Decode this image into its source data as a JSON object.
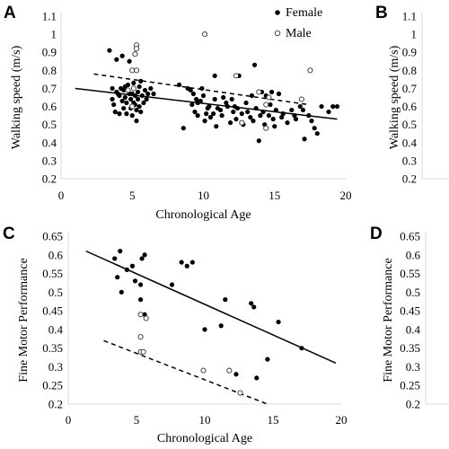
{
  "figure": {
    "panels": [
      "A",
      "B",
      "C",
      "D"
    ]
  },
  "chart_data": [
    {
      "panel": "A",
      "type": "scatter",
      "xlabel": "Chronological Age",
      "ylabel": "Walking speed (m/s)",
      "xlim": [
        0,
        20
      ],
      "ylim": [
        0.2,
        1.1
      ],
      "x_ticks": [
        "0",
        "5",
        "10",
        "15",
        "20"
      ],
      "y_ticks": [
        "0.2",
        "0.3",
        "0.4",
        "0.5",
        "0.6",
        "0.7",
        "0.8",
        "0.9",
        "1",
        "1.1"
      ],
      "legend": {
        "position": "top-right",
        "entries": [
          "Female",
          "Male"
        ]
      },
      "series": [
        {
          "name": "Female",
          "marker": "filled-circle",
          "points": [
            [
              3.4,
              0.91
            ],
            [
              3.6,
              0.7
            ],
            [
              3.6,
              0.64
            ],
            [
              3.7,
              0.61
            ],
            [
              3.8,
              0.57
            ],
            [
              3.9,
              0.86
            ],
            [
              3.9,
              0.68
            ],
            [
              4.0,
              0.67
            ],
            [
              4.1,
              0.66
            ],
            [
              4.1,
              0.56
            ],
            [
              4.2,
              0.7
            ],
            [
              4.3,
              0.88
            ],
            [
              4.3,
              0.63
            ],
            [
              4.4,
              0.69
            ],
            [
              4.4,
              0.59
            ],
            [
              4.5,
              0.71
            ],
            [
              4.5,
              0.65
            ],
            [
              4.6,
              0.62
            ],
            [
              4.6,
              0.56
            ],
            [
              4.7,
              0.72
            ],
            [
              4.8,
              0.67
            ],
            [
              4.8,
              0.85
            ],
            [
              4.9,
              0.64
            ],
            [
              4.9,
              0.59
            ],
            [
              5.0,
              0.67
            ],
            [
              5.0,
              0.55
            ],
            [
              5.1,
              0.73
            ],
            [
              5.1,
              0.62
            ],
            [
              5.2,
              0.66
            ],
            [
              5.2,
              0.61
            ],
            [
              5.3,
              0.58
            ],
            [
              5.3,
              0.52
            ],
            [
              5.4,
              0.68
            ],
            [
              5.4,
              0.64
            ],
            [
              5.5,
              0.71
            ],
            [
              5.5,
              0.6
            ],
            [
              5.6,
              0.57
            ],
            [
              5.6,
              0.74
            ],
            [
              5.7,
              0.66
            ],
            [
              5.8,
              0.62
            ],
            [
              5.9,
              0.69
            ],
            [
              6.0,
              0.64
            ],
            [
              6.1,
              0.67
            ],
            [
              6.3,
              0.7
            ],
            [
              6.5,
              0.67
            ],
            [
              8.3,
              0.72
            ],
            [
              8.6,
              0.48
            ],
            [
              8.9,
              0.7
            ],
            [
              9.1,
              0.69
            ],
            [
              9.2,
              0.61
            ],
            [
              9.3,
              0.67
            ],
            [
              9.4,
              0.57
            ],
            [
              9.5,
              0.64
            ],
            [
              9.6,
              0.55
            ],
            [
              9.6,
              0.62
            ],
            [
              9.8,
              0.63
            ],
            [
              9.9,
              0.7
            ],
            [
              10.0,
              0.66
            ],
            [
              10.1,
              0.52
            ],
            [
              10.2,
              0.56
            ],
            [
              10.3,
              0.59
            ],
            [
              10.4,
              0.6
            ],
            [
              10.5,
              0.54
            ],
            [
              10.7,
              0.56
            ],
            [
              10.8,
              0.64
            ],
            [
              10.8,
              0.77
            ],
            [
              10.9,
              0.49
            ],
            [
              11.0,
              0.59
            ],
            [
              11.2,
              0.58
            ],
            [
              11.3,
              0.55
            ],
            [
              11.4,
              0.65
            ],
            [
              11.6,
              0.62
            ],
            [
              11.7,
              0.6
            ],
            [
              11.9,
              0.51
            ],
            [
              12.0,
              0.64
            ],
            [
              12.1,
              0.57
            ],
            [
              12.2,
              0.6
            ],
            [
              12.3,
              0.53
            ],
            [
              12.4,
              0.59
            ],
            [
              12.5,
              0.77
            ],
            [
              12.7,
              0.56
            ],
            [
              12.8,
              0.5
            ],
            [
              13.0,
              0.62
            ],
            [
              13.1,
              0.57
            ],
            [
              13.3,
              0.54
            ],
            [
              13.4,
              0.66
            ],
            [
              13.5,
              0.52
            ],
            [
              13.6,
              0.83
            ],
            [
              13.7,
              0.59
            ],
            [
              13.9,
              0.41
            ],
            [
              14.0,
              0.55
            ],
            [
              14.1,
              0.68
            ],
            [
              14.2,
              0.57
            ],
            [
              14.3,
              0.5
            ],
            [
              14.4,
              0.66
            ],
            [
              14.6,
              0.55
            ],
            [
              14.7,
              0.61
            ],
            [
              14.8,
              0.68
            ],
            [
              14.9,
              0.53
            ],
            [
              15.0,
              0.49
            ],
            [
              15.1,
              0.58
            ],
            [
              15.3,
              0.67
            ],
            [
              15.5,
              0.54
            ],
            [
              15.6,
              0.56
            ],
            [
              15.9,
              0.51
            ],
            [
              16.2,
              0.58
            ],
            [
              16.4,
              0.55
            ],
            [
              16.5,
              0.53
            ],
            [
              16.8,
              0.6
            ],
            [
              17.0,
              0.58
            ],
            [
              17.1,
              0.42
            ],
            [
              17.4,
              0.55
            ],
            [
              17.6,
              0.52
            ],
            [
              17.8,
              0.48
            ],
            [
              18.0,
              0.45
            ],
            [
              18.3,
              0.6
            ],
            [
              18.8,
              0.57
            ],
            [
              19.1,
              0.6
            ],
            [
              19.4,
              0.6
            ]
          ],
          "trendline": {
            "style": "solid",
            "from": [
              1.0,
              0.7
            ],
            "to": [
              19.4,
              0.53
            ]
          }
        },
        {
          "name": "Male",
          "marker": "open-circle",
          "points": [
            [
              5.3,
              0.94
            ],
            [
              5.3,
              0.92
            ],
            [
              5.2,
              0.89
            ],
            [
              5.0,
              0.8
            ],
            [
              5.3,
              0.8
            ],
            [
              5.1,
              0.7
            ],
            [
              4.7,
              0.69
            ],
            [
              5.0,
              0.6
            ],
            [
              10.1,
              1.0
            ],
            [
              12.3,
              0.77
            ],
            [
              13.9,
              0.68
            ],
            [
              14.6,
              0.65
            ],
            [
              14.4,
              0.61
            ],
            [
              12.7,
              0.51
            ],
            [
              14.4,
              0.48
            ],
            [
              17.5,
              0.8
            ],
            [
              16.9,
              0.64
            ]
          ],
          "trendline": {
            "style": "dashed",
            "from": [
              2.3,
              0.78
            ],
            "to": [
              17.4,
              0.61
            ]
          }
        }
      ]
    },
    {
      "panel": "B",
      "type": "scatter",
      "ylabel": "Walking speed (m/s)",
      "ylim": [
        0.2,
        1.1
      ],
      "y_ticks": [
        "0.2",
        "0.3",
        "0.4",
        "0.5",
        "0.6",
        "0.7",
        "0.8",
        "0.9",
        "1",
        "1.1"
      ],
      "note": "panel cropped at right edge of image"
    },
    {
      "panel": "C",
      "type": "scatter",
      "xlabel": "Chronological Age",
      "ylabel": "Fine Motor Performance",
      "xlim": [
        0,
        20
      ],
      "ylim": [
        0.2,
        0.65
      ],
      "x_ticks": [
        "0",
        "5",
        "10",
        "15",
        "20"
      ],
      "y_ticks": [
        "0.2",
        "0.25",
        "0.3",
        "0.35",
        "0.4",
        "0.45",
        "0.5",
        "0.55",
        "0.6",
        "0.65"
      ],
      "series": [
        {
          "name": "Female",
          "marker": "filled-circle",
          "points": [
            [
              3.4,
              0.59
            ],
            [
              3.8,
              0.61
            ],
            [
              3.6,
              0.54
            ],
            [
              3.9,
              0.5
            ],
            [
              4.3,
              0.56
            ],
            [
              4.7,
              0.57
            ],
            [
              4.9,
              0.53
            ],
            [
              5.4,
              0.59
            ],
            [
              5.6,
              0.6
            ],
            [
              5.3,
              0.52
            ],
            [
              5.3,
              0.48
            ],
            [
              5.6,
              0.44
            ],
            [
              7.6,
              0.52
            ],
            [
              8.3,
              0.58
            ],
            [
              8.7,
              0.57
            ],
            [
              9.1,
              0.58
            ],
            [
              10.0,
              0.4
            ],
            [
              11.2,
              0.41
            ],
            [
              11.5,
              0.48
            ],
            [
              12.3,
              0.28
            ],
            [
              13.4,
              0.47
            ],
            [
              13.6,
              0.46
            ],
            [
              13.8,
              0.27
            ],
            [
              14.6,
              0.32
            ],
            [
              15.4,
              0.42
            ],
            [
              17.1,
              0.35
            ]
          ],
          "trendline": {
            "style": "solid",
            "from": [
              1.3,
              0.61
            ],
            "to": [
              19.6,
              0.31
            ]
          }
        },
        {
          "name": "Male",
          "marker": "open-circle",
          "points": [
            [
              5.3,
              0.44
            ],
            [
              5.7,
              0.43
            ],
            [
              5.3,
              0.38
            ],
            [
              5.3,
              0.34
            ],
            [
              5.5,
              0.34
            ],
            [
              9.9,
              0.29
            ],
            [
              11.8,
              0.29
            ],
            [
              12.6,
              0.23
            ]
          ],
          "trendline": {
            "style": "dashed",
            "from": [
              2.6,
              0.37
            ],
            "to": [
              14.6,
              0.2
            ]
          }
        }
      ]
    },
    {
      "panel": "D",
      "type": "scatter",
      "ylabel": "Fine Motor Performance",
      "ylim": [
        0.2,
        0.65
      ],
      "y_ticks": [
        "0.2",
        "0.25",
        "0.3",
        "0.35",
        "0.4",
        "0.45",
        "0.5",
        "0.55",
        "0.6",
        "0.65"
      ],
      "note": "panel cropped at right edge of image"
    }
  ]
}
